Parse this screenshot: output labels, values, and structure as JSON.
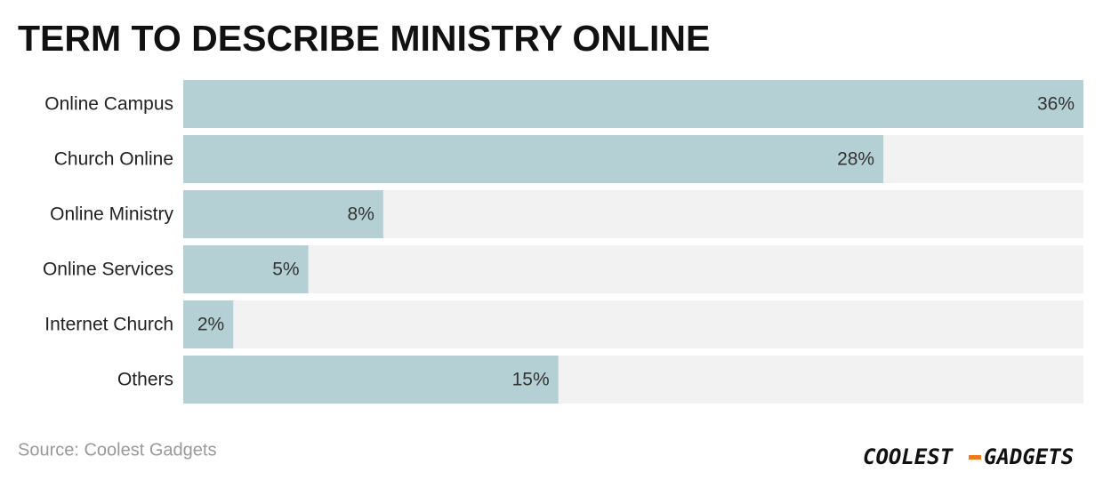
{
  "chart_data": {
    "type": "bar",
    "orientation": "horizontal",
    "title": "TERM TO DESCRIBE MINISTRY ONLINE",
    "categories": [
      "Online Campus",
      "Church Online",
      "Online Ministry",
      "Online Services",
      "Internet Church",
      "Others"
    ],
    "values": [
      36,
      28,
      8,
      5,
      2,
      15
    ],
    "value_labels": [
      "36%",
      "28%",
      "8%",
      "5%",
      "2%",
      "15%"
    ],
    "color": "#b5d0d5",
    "track_color": "#f2f2f2",
    "xlim": [
      0,
      36
    ],
    "source": "Source: Coolest Gadgets",
    "logo": {
      "left": "COOLEST",
      "right": "GADGETS"
    }
  }
}
